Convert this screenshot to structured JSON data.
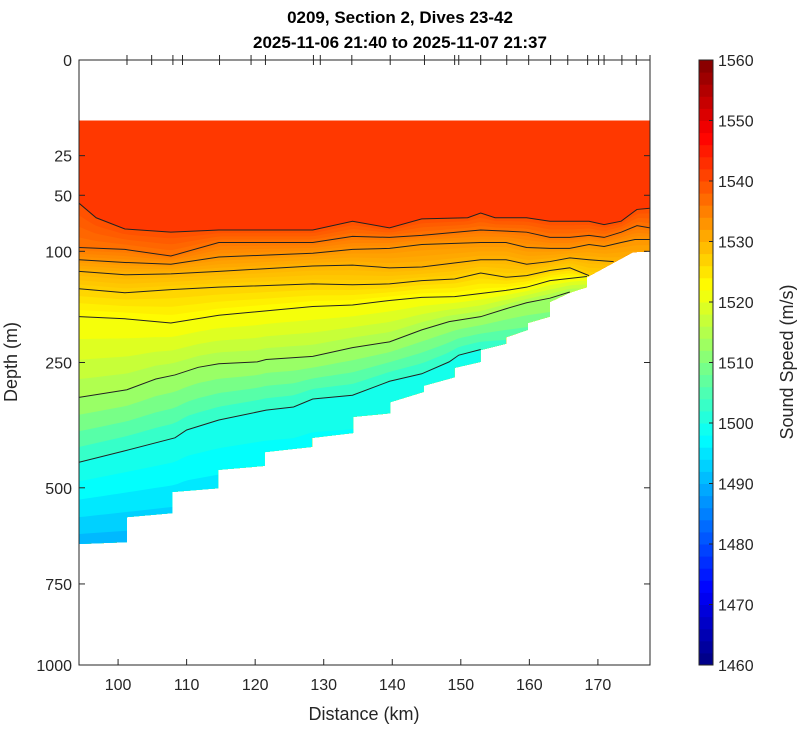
{
  "chart_data": {
    "type": "contour",
    "title": "0209, Section 2, Dives 23-42",
    "subtitle": "2025-11-06 21:40 to 2025-11-07 21:37",
    "xlabel": "Distance (km)",
    "ylabel": "Depth (m)",
    "xlim": [
      94.3,
      177.6
    ],
    "ylim": [
      0,
      1000
    ],
    "yscale": "sqrt",
    "y_reversed": true,
    "xticks": [
      "100",
      "110",
      "120",
      "130",
      "140",
      "150",
      "160",
      "170"
    ],
    "xtick_values": [
      100,
      110,
      120,
      130,
      140,
      150,
      160,
      170
    ],
    "yticks": [
      "0",
      "25",
      "50",
      "100",
      "250",
      "500",
      "750",
      "1000"
    ],
    "ytick_values": [
      0,
      25,
      50,
      100,
      250,
      500,
      750,
      1000
    ],
    "colorbar": {
      "label": "Sound Speed (m/s)",
      "colormap": "jet",
      "range": [
        1460,
        1560
      ],
      "ticks": [
        "1460",
        "1470",
        "1480",
        "1490",
        "1500",
        "1510",
        "1520",
        "1530",
        "1540",
        "1550",
        "1560"
      ],
      "tick_values": [
        1460,
        1470,
        1480,
        1490,
        1500,
        1510,
        1520,
        1530,
        1540,
        1550,
        1560
      ]
    },
    "data_top_depth": 10,
    "dive_marks_km": [
      101.3,
      104.9,
      108,
      109.4,
      114.8,
      119.4,
      121.5,
      128.5,
      129.5,
      134.1,
      139.7,
      144.7,
      149.1,
      149.7,
      152.9,
      156.7,
      159.9,
      163.1,
      165.6,
      168.5,
      170.1,
      170.9,
      173.5,
      175.6,
      177.6
    ],
    "bottom_boundary": [
      [
        177.6,
        100
      ],
      [
        175.1,
        101
      ],
      [
        168.4,
        129
      ],
      [
        168.4,
        141
      ],
      [
        165.9,
        148
      ],
      [
        163,
        160
      ],
      [
        163,
        180
      ],
      [
        159.8,
        189
      ],
      [
        159.8,
        199
      ],
      [
        156.6,
        210
      ],
      [
        156.6,
        220
      ],
      [
        152.9,
        230
      ],
      [
        152.9,
        249
      ],
      [
        149.1,
        259
      ],
      [
        149.1,
        275
      ],
      [
        144.6,
        290
      ],
      [
        144.6,
        301
      ],
      [
        139.7,
        320
      ],
      [
        139.7,
        341
      ],
      [
        134.3,
        348
      ],
      [
        134.3,
        380
      ],
      [
        128.3,
        390
      ],
      [
        128.3,
        409
      ],
      [
        121.4,
        420
      ],
      [
        121.4,
        450
      ],
      [
        114.6,
        459
      ],
      [
        114.6,
        501
      ],
      [
        107.9,
        510
      ],
      [
        107.9,
        561
      ],
      [
        101.3,
        571
      ],
      [
        101.3,
        635
      ],
      [
        94.3,
        640
      ]
    ],
    "surface_speed": 1542,
    "deep_speed": 1486,
    "contours": [
      {
        "speed": 1540,
        "points": [
          [
            94.3,
            56
          ],
          [
            96.8,
            68
          ],
          [
            101,
            78
          ],
          [
            107.7,
            81
          ],
          [
            114.7,
            79
          ],
          [
            121.6,
            79
          ],
          [
            128.4,
            79
          ],
          [
            134.2,
            71
          ],
          [
            139.6,
            77
          ],
          [
            144.3,
            69
          ],
          [
            151,
            68
          ],
          [
            152.9,
            64
          ],
          [
            155,
            68
          ],
          [
            159.6,
            68
          ],
          [
            163,
            71
          ],
          [
            168.7,
            71
          ],
          [
            170.9,
            74
          ],
          [
            173.4,
            71
          ],
          [
            175.7,
            61
          ],
          [
            177.6,
            60
          ]
        ]
      },
      {
        "speed": 1536,
        "points": [
          [
            94.3,
            96
          ],
          [
            101,
            98
          ],
          [
            107.7,
            105
          ],
          [
            114.7,
            91
          ],
          [
            128.4,
            91
          ],
          [
            134.2,
            85
          ],
          [
            139.6,
            86
          ],
          [
            144.3,
            84
          ],
          [
            152.9,
            79
          ],
          [
            156.6,
            80
          ],
          [
            159.6,
            81
          ],
          [
            163,
            86
          ],
          [
            165.9,
            86
          ],
          [
            168.7,
            84
          ],
          [
            170.9,
            86
          ],
          [
            173.4,
            81
          ],
          [
            175.7,
            75
          ],
          [
            177.6,
            77
          ]
        ]
      },
      {
        "speed": 1533,
        "points": [
          [
            94.3,
            109
          ],
          [
            101,
            112
          ],
          [
            107.7,
            114
          ],
          [
            114.7,
            106
          ],
          [
            128.4,
            102
          ],
          [
            134.2,
            98
          ],
          [
            139.6,
            97
          ],
          [
            144.3,
            93
          ],
          [
            152.9,
            91
          ],
          [
            156.6,
            91
          ],
          [
            159.6,
            96
          ],
          [
            163,
            97
          ],
          [
            165.9,
            97
          ],
          [
            168.7,
            93
          ],
          [
            170.9,
            95
          ],
          [
            173.4,
            91
          ],
          [
            175.4,
            88
          ],
          [
            177.6,
            88
          ]
        ]
      },
      {
        "speed": 1530,
        "points": [
          [
            94.3,
            122
          ],
          [
            101,
            126
          ],
          [
            107.7,
            125
          ],
          [
            114.7,
            122
          ],
          [
            128.4,
            116
          ],
          [
            134.2,
            115
          ],
          [
            139.6,
            118
          ],
          [
            144.3,
            117
          ],
          [
            152.9,
            109
          ],
          [
            156.6,
            109
          ],
          [
            159.6,
            114
          ],
          [
            163,
            111
          ],
          [
            165.9,
            107
          ],
          [
            168.7,
            109
          ],
          [
            172.3,
            111
          ]
        ]
      },
      {
        "speed": 1527,
        "points": [
          [
            94.3,
            143
          ],
          [
            101,
            148
          ],
          [
            107.7,
            144
          ],
          [
            114.7,
            141
          ],
          [
            128.4,
            137
          ],
          [
            134.2,
            138
          ],
          [
            139.6,
            137
          ],
          [
            144.3,
            133
          ],
          [
            149.1,
            131
          ],
          [
            152.9,
            124
          ],
          [
            156.6,
            129
          ],
          [
            159.6,
            127
          ],
          [
            163,
            121
          ],
          [
            165.9,
            118
          ],
          [
            168.7,
            127
          ]
        ]
      },
      {
        "speed": 1522,
        "points": [
          [
            94.3,
            180
          ],
          [
            101,
            183
          ],
          [
            107.7,
            189
          ],
          [
            114.7,
            178
          ],
          [
            128.4,
            166
          ],
          [
            134.2,
            164
          ],
          [
            139.6,
            158
          ],
          [
            144.3,
            154
          ],
          [
            149.1,
            153
          ],
          [
            152.9,
            149
          ],
          [
            156.6,
            145
          ],
          [
            159.6,
            141
          ],
          [
            163,
            133
          ],
          [
            168.4,
            128
          ]
        ]
      },
      {
        "speed": 1513,
        "points": [
          [
            94.3,
            311
          ],
          [
            101.3,
            297
          ],
          [
            105.5,
            278
          ],
          [
            108.3,
            271
          ],
          [
            111.7,
            258
          ],
          [
            114.7,
            252
          ],
          [
            120.3,
            249
          ],
          [
            121.6,
            245
          ],
          [
            128.4,
            240
          ],
          [
            134.2,
            226
          ],
          [
            139.6,
            217
          ],
          [
            144.3,
            199
          ],
          [
            148.3,
            187
          ],
          [
            152.9,
            180
          ],
          [
            156.6,
            169
          ],
          [
            159.6,
            161
          ],
          [
            163,
            155
          ],
          [
            165.9,
            147
          ]
        ]
      },
      {
        "speed": 1500,
        "points": [
          [
            94.3,
            442
          ],
          [
            100.8,
            418
          ],
          [
            108.3,
            390
          ],
          [
            110,
            374
          ],
          [
            114.7,
            354
          ],
          [
            121.6,
            335
          ],
          [
            125.6,
            329
          ],
          [
            128.4,
            314
          ],
          [
            134.2,
            307
          ],
          [
            139.6,
            282
          ],
          [
            144.3,
            269
          ],
          [
            148.3,
            249
          ],
          [
            149.7,
            238
          ],
          [
            152.9,
            229
          ]
        ]
      }
    ]
  }
}
